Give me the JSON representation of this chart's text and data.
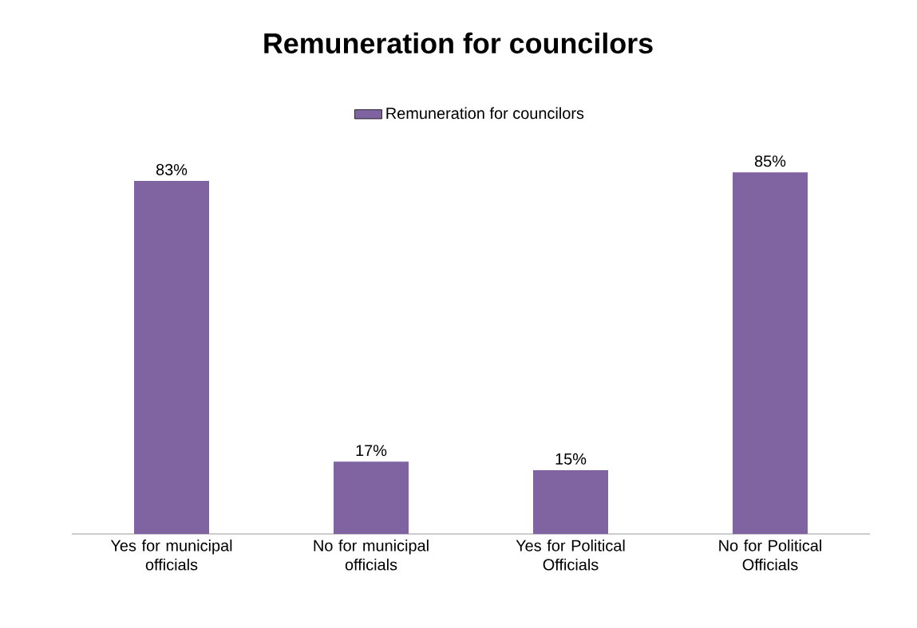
{
  "chart_data": {
    "type": "bar",
    "title": "Remuneration for councilors",
    "categories": [
      "Yes for municipal officials",
      "No for municipal officials",
      "Yes for Political Officials",
      "No for Political Officials"
    ],
    "series": [
      {
        "name": "Remuneration for councilors",
        "color": "#8064a2",
        "values": [
          83,
          17,
          15,
          85
        ],
        "value_labels": [
          "83%",
          "17%",
          "15%",
          "85%"
        ]
      }
    ],
    "legend": "top"
  }
}
